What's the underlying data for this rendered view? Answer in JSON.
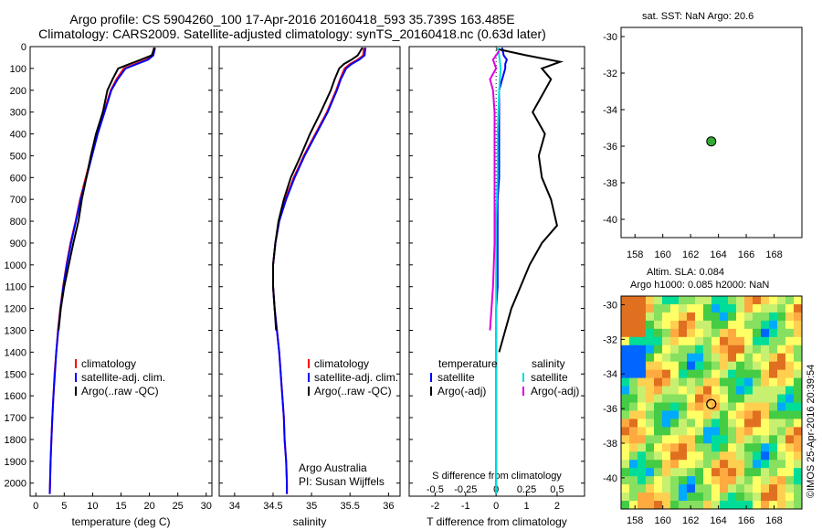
{
  "header": {
    "title_line1": "Argo profile: CS 5904260_100 17-Apr-2016 20160418_593 35.739S 163.485E",
    "title_line2": "Climatology: CARS2009. Satellite-adjusted climatology: synTS_20160418.nc (0.63d later)"
  },
  "colors": {
    "climatology": "#ff0000",
    "satellite": "#0000ff",
    "argo": "#000000",
    "satellite_s": "#00dddd",
    "argo_s": "#dd00dd"
  },
  "chart_data": [
    {
      "id": "temperature",
      "type": "line",
      "xlabel": "temperature (deg C)",
      "xlim": [
        -1,
        31
      ],
      "ylim": [
        2060,
        0
      ],
      "xticks": [
        0,
        5,
        10,
        15,
        20,
        25,
        30
      ],
      "yticks": [
        0,
        100,
        200,
        300,
        400,
        500,
        600,
        700,
        800,
        900,
        1000,
        1100,
        1200,
        1300,
        1400,
        1500,
        1600,
        1700,
        1800,
        1900,
        2000
      ],
      "legend": [
        "climatology",
        "satellite-adj. clim.",
        "Argo(..raw -QC)"
      ],
      "series": [
        {
          "name": "climatology",
          "color": "#ff0000",
          "points": [
            [
              20.8,
              5
            ],
            [
              20.5,
              40
            ],
            [
              19.5,
              60
            ],
            [
              17.5,
              80
            ],
            [
              15.5,
              100
            ],
            [
              14.2,
              150
            ],
            [
              13.2,
              200
            ],
            [
              12,
              300
            ],
            [
              10.8,
              400
            ],
            [
              9.8,
              500
            ],
            [
              8.8,
              600
            ],
            [
              7.8,
              700
            ],
            [
              7,
              800
            ],
            [
              6.1,
              900
            ],
            [
              5.4,
              1000
            ],
            [
              4.8,
              1100
            ],
            [
              4.3,
              1200
            ],
            [
              3.9,
              1300
            ],
            [
              3.6,
              1400
            ],
            [
              3.3,
              1500
            ],
            [
              3.1,
              1600
            ],
            [
              2.9,
              1700
            ],
            [
              2.75,
              1800
            ],
            [
              2.6,
              1900
            ],
            [
              2.5,
              2000
            ],
            [
              2.45,
              2050
            ]
          ]
        },
        {
          "name": "satellite-adj. clim.",
          "color": "#0000ff",
          "points": [
            [
              21,
              5
            ],
            [
              20.7,
              40
            ],
            [
              19.8,
              60
            ],
            [
              17.8,
              80
            ],
            [
              15.8,
              100
            ],
            [
              14.4,
              150
            ],
            [
              13.3,
              200
            ],
            [
              12.1,
              300
            ],
            [
              10.9,
              400
            ],
            [
              9.9,
              500
            ],
            [
              8.9,
              600
            ],
            [
              7.9,
              700
            ],
            [
              7.05,
              800
            ],
            [
              6.2,
              900
            ],
            [
              5.45,
              1000
            ],
            [
              4.85,
              1100
            ],
            [
              4.35,
              1200
            ],
            [
              3.95,
              1300
            ],
            [
              3.6,
              1400
            ],
            [
              3.35,
              1500
            ],
            [
              3.1,
              1600
            ],
            [
              2.9,
              1700
            ],
            [
              2.75,
              1800
            ],
            [
              2.6,
              1900
            ],
            [
              2.5,
              2000
            ],
            [
              2.45,
              2050
            ]
          ]
        },
        {
          "name": "Argo(..raw -QC)",
          "color": "#000000",
          "points": [
            [
              20.9,
              5
            ],
            [
              20.4,
              40
            ],
            [
              18.5,
              60
            ],
            [
              16.5,
              80
            ],
            [
              14.5,
              100
            ],
            [
              13.5,
              150
            ],
            [
              12.6,
              200
            ],
            [
              11.8,
              300
            ],
            [
              10.6,
              400
            ],
            [
              9.7,
              500
            ],
            [
              8.9,
              600
            ],
            [
              8.1,
              700
            ],
            [
              7.5,
              800
            ],
            [
              6.6,
              900
            ],
            [
              5.8,
              1000
            ],
            [
              5,
              1100
            ],
            [
              4.4,
              1200
            ],
            [
              4,
              1300
            ]
          ]
        }
      ]
    },
    {
      "id": "salinity",
      "type": "line",
      "xlabel": "salinity",
      "xlim": [
        33.8,
        36.15
      ],
      "ylim": [
        2060,
        0
      ],
      "xticks": [
        34,
        34.5,
        35,
        35.5,
        36
      ],
      "legend": [
        "climatology",
        "satellite-adj. clim.",
        "Argo(..raw -QC)"
      ],
      "annotation": [
        "Argo Australia",
        "PI: Susan Wijffels"
      ],
      "series": [
        {
          "name": "climatology",
          "color": "#ff0000",
          "points": [
            [
              35.68,
              5
            ],
            [
              35.67,
              40
            ],
            [
              35.6,
              60
            ],
            [
              35.5,
              80
            ],
            [
              35.43,
              100
            ],
            [
              35.37,
              150
            ],
            [
              35.32,
              200
            ],
            [
              35.2,
              300
            ],
            [
              35.05,
              400
            ],
            [
              34.9,
              500
            ],
            [
              34.77,
              600
            ],
            [
              34.66,
              700
            ],
            [
              34.58,
              800
            ],
            [
              34.53,
              900
            ],
            [
              34.5,
              1000
            ],
            [
              34.5,
              1100
            ],
            [
              34.52,
              1200
            ],
            [
              34.55,
              1300
            ],
            [
              34.58,
              1400
            ],
            [
              34.6,
              1500
            ],
            [
              34.62,
              1600
            ],
            [
              34.64,
              1700
            ],
            [
              34.65,
              1800
            ],
            [
              34.67,
              1900
            ],
            [
              34.68,
              2000
            ],
            [
              34.68,
              2050
            ]
          ]
        },
        {
          "name": "satellite-adj. clim.",
          "color": "#0000ff",
          "points": [
            [
              35.7,
              5
            ],
            [
              35.69,
              40
            ],
            [
              35.62,
              60
            ],
            [
              35.52,
              80
            ],
            [
              35.45,
              100
            ],
            [
              35.38,
              150
            ],
            [
              35.33,
              200
            ],
            [
              35.21,
              300
            ],
            [
              35.06,
              400
            ],
            [
              34.91,
              500
            ],
            [
              34.78,
              600
            ],
            [
              34.67,
              700
            ],
            [
              34.58,
              800
            ],
            [
              34.53,
              900
            ],
            [
              34.5,
              1000
            ],
            [
              34.5,
              1100
            ],
            [
              34.52,
              1200
            ],
            [
              34.55,
              1300
            ],
            [
              34.58,
              1400
            ],
            [
              34.6,
              1500
            ],
            [
              34.62,
              1600
            ],
            [
              34.64,
              1700
            ],
            [
              34.65,
              1800
            ],
            [
              34.67,
              1900
            ],
            [
              34.68,
              2000
            ],
            [
              34.68,
              2050
            ]
          ]
        },
        {
          "name": "Argo(..raw -QC)",
          "color": "#000000",
          "points": [
            [
              35.66,
              5
            ],
            [
              35.6,
              40
            ],
            [
              35.52,
              60
            ],
            [
              35.42,
              80
            ],
            [
              35.36,
              100
            ],
            [
              35.3,
              150
            ],
            [
              35.25,
              200
            ],
            [
              35.12,
              300
            ],
            [
              34.98,
              400
            ],
            [
              34.86,
              500
            ],
            [
              34.73,
              600
            ],
            [
              34.64,
              700
            ],
            [
              34.57,
              800
            ],
            [
              34.53,
              900
            ],
            [
              34.5,
              1000
            ],
            [
              34.5,
              1100
            ],
            [
              34.52,
              1200
            ],
            [
              34.54,
              1300
            ]
          ]
        }
      ]
    },
    {
      "id": "difference",
      "type": "line",
      "xlabel": "T difference from climatology",
      "xlabel_top": "S difference from climatology",
      "xlim": [
        -2.85,
        2.9
      ],
      "ylim": [
        2060,
        0
      ],
      "xticks": [
        -2,
        -1,
        0,
        1,
        2
      ],
      "top_ticks": [
        "-0.5",
        "-0.25",
        "0",
        "0.25",
        "0.5"
      ],
      "legend_left": [
        "temperature",
        "satellite",
        "Argo(-adj)"
      ],
      "legend_right": [
        "salinity",
        "satellite",
        "Argo(-adj)"
      ],
      "series": [
        {
          "name": "temperature satellite",
          "color": "#0000ff",
          "points": [
            [
              0.2,
              5
            ],
            [
              0.25,
              40
            ],
            [
              0.35,
              60
            ],
            [
              0.3,
              80
            ],
            [
              0.3,
              100
            ],
            [
              0.2,
              150
            ],
            [
              0.1,
              200
            ],
            [
              0.1,
              300
            ],
            [
              0.1,
              400
            ],
            [
              0.1,
              500
            ],
            [
              0.1,
              600
            ],
            [
              0.05,
              700
            ],
            [
              0.05,
              800
            ],
            [
              0.05,
              900
            ],
            [
              0.05,
              1000
            ],
            [
              0.05,
              1100
            ],
            [
              0,
              1200
            ],
            [
              0,
              1300
            ],
            [
              0,
              1400
            ],
            [
              0,
              1500
            ],
            [
              0,
              1600
            ],
            [
              0,
              1700
            ],
            [
              0,
              1800
            ],
            [
              0,
              1900
            ],
            [
              0,
              2000
            ],
            [
              0,
              2050
            ]
          ]
        },
        {
          "name": "temperature Argo(-adj)",
          "color": "#000000",
          "points": [
            [
              0,
              10
            ],
            [
              1.0,
              40
            ],
            [
              2.1,
              70
            ],
            [
              1.5,
              100
            ],
            [
              1.8,
              150
            ],
            [
              1.6,
              200
            ],
            [
              1.4,
              250
            ],
            [
              1.2,
              300
            ],
            [
              1.6,
              400
            ],
            [
              1.4,
              500
            ],
            [
              1.5,
              600
            ],
            [
              1.8,
              700
            ],
            [
              2.0,
              820
            ],
            [
              1.5,
              900
            ],
            [
              1.1,
              1000
            ],
            [
              0.8,
              1100
            ],
            [
              0.5,
              1200
            ],
            [
              0.3,
              1300
            ],
            [
              0.1,
              1400
            ]
          ]
        },
        {
          "name": "salinity satellite",
          "color": "#00dddd",
          "points": [
            [
              0.05,
              5
            ],
            [
              0.1,
              40
            ],
            [
              0.15,
              100
            ],
            [
              0.1,
              200
            ],
            [
              0.05,
              400
            ],
            [
              0.05,
              600
            ],
            [
              0,
              800
            ],
            [
              0,
              1000
            ],
            [
              0,
              1200
            ],
            [
              0,
              1500
            ],
            [
              0,
              2050
            ]
          ]
        },
        {
          "name": "salinity Argo(-adj)",
          "color": "#dd00dd",
          "points": [
            [
              0.1,
              20
            ],
            [
              -0.1,
              60
            ],
            [
              0,
              100
            ],
            [
              -0.2,
              150
            ],
            [
              -0.1,
              200
            ],
            [
              -0.05,
              300
            ],
            [
              -0.05,
              500
            ],
            [
              -0.05,
              700
            ],
            [
              -0.05,
              900
            ],
            [
              -0.1,
              1100
            ],
            [
              -0.2,
              1300
            ]
          ]
        }
      ]
    },
    {
      "id": "sst_map",
      "type": "scatter",
      "title": "sat. SST: NaN Argo: 20.6",
      "xlim": [
        157,
        170
      ],
      "ylim": [
        -41,
        -29.5
      ],
      "xticks": [
        158,
        160,
        162,
        164,
        166,
        168
      ],
      "yticks": [
        -30,
        -32,
        -34,
        -36,
        -38,
        -40
      ],
      "marker": {
        "lon": 163.485,
        "lat": -35.739,
        "color": "#33aa33"
      }
    },
    {
      "id": "sla_map",
      "type": "heatmap",
      "title_line1": "Altim. SLA: 0.084",
      "title_line2": "Argo h1000: 0.085 h2000: NaN",
      "xlim": [
        157,
        170
      ],
      "ylim": [
        -41.8,
        -29.5
      ],
      "xticks": [
        158,
        160,
        162,
        164,
        166,
        168
      ],
      "yticks": [
        -30,
        -32,
        -34,
        -36,
        -38,
        -40
      ],
      "marker": {
        "lon": 163.485,
        "lat": -35.739
      }
    }
  ],
  "footer": {
    "stamp": "©IMOS 25-Apr-2016 20:39:54"
  }
}
